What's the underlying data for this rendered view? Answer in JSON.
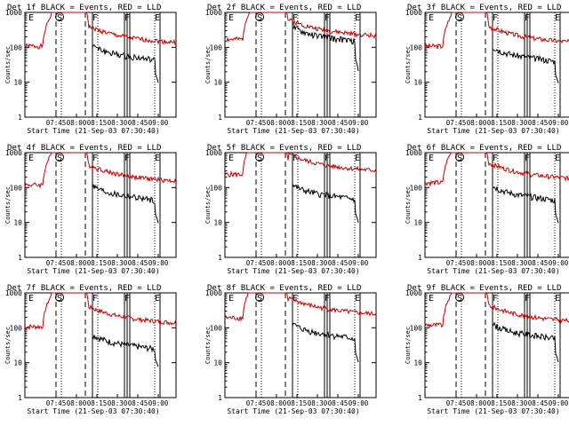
{
  "chart_data": [
    {
      "type": "line",
      "title": "Det 1f BLACK = Events, RED = LLD",
      "xlabel": "Start Time (21-Sep-03 07:30:40)",
      "ylabel": "Counts/sec",
      "yscale": "log",
      "ylim": [
        1,
        1000
      ],
      "xlim": [
        0,
        2.15
      ],
      "x_ticks": [
        "07:45",
        "08:00",
        "08:15",
        "08:30",
        "08:45",
        "09:00"
      ],
      "y_ticks": [
        "1",
        "10",
        "100",
        "1000"
      ],
      "markers": [
        "E",
        "S",
        "F",
        "F",
        "E"
      ],
      "red_base": 180,
      "black_base": 70,
      "black_start": 1.05,
      "seed": 1
    },
    {
      "type": "line",
      "title": "Det 2f BLACK = Events, RED = LLD",
      "xlabel": "Start Time (21-Sep-03 07:30:40)",
      "ylabel": "Counts/sec",
      "yscale": "log",
      "ylim": [
        1,
        1000
      ],
      "xlim": [
        0,
        2.15
      ],
      "x_ticks": [
        "07:45",
        "08:00",
        "08:15",
        "08:30",
        "08:45",
        "09:00"
      ],
      "y_ticks": [
        "1",
        "10",
        "100",
        "1000"
      ],
      "markers": [
        "E",
        "S",
        "F",
        "F",
        "E"
      ],
      "red_base": 280,
      "black_base": 240,
      "black_start": 1.05,
      "seed": 2
    },
    {
      "type": "line",
      "title": "Det 3f BLACK = Events, RED = LLD",
      "xlabel": "Start Time (21-Sep-03 07:30:40)",
      "ylabel": "Counts/sec",
      "yscale": "log",
      "ylim": [
        1,
        1000
      ],
      "xlim": [
        0,
        2.15
      ],
      "x_ticks": [
        "07:45",
        "08:00",
        "08:15",
        "08:30",
        "08:45",
        "09:00"
      ],
      "y_ticks": [
        "1",
        "10",
        "100",
        "1000"
      ],
      "markers": [
        "E",
        "S",
        "F",
        "F",
        "E"
      ],
      "red_base": 180,
      "black_base": 65,
      "black_start": 1.05,
      "seed": 3
    },
    {
      "type": "line",
      "title": "Det 4f BLACK = Events, RED = LLD",
      "xlabel": "Start Time (21-Sep-03 07:30:40)",
      "ylabel": "Counts/sec",
      "yscale": "log",
      "ylim": [
        1,
        1000
      ],
      "xlim": [
        0,
        2.15
      ],
      "x_ticks": [
        "07:45",
        "08:00",
        "08:15",
        "08:30",
        "08:45",
        "09:00"
      ],
      "y_ticks": [
        "1",
        "10",
        "100",
        "1000"
      ],
      "markers": [
        "E",
        "S",
        "F",
        "F",
        "E"
      ],
      "red_base": 200,
      "black_base": 70,
      "black_start": 1.05,
      "seed": 4
    },
    {
      "type": "line",
      "title": "Det 5f BLACK = Events, RED = LLD",
      "xlabel": "Start Time (21-Sep-03 07:30:40)",
      "ylabel": "Counts/sec",
      "yscale": "log",
      "ylim": [
        1,
        1000
      ],
      "xlim": [
        0,
        2.15
      ],
      "x_ticks": [
        "07:45",
        "08:00",
        "08:15",
        "08:30",
        "08:45",
        "09:00"
      ],
      "y_ticks": [
        "1",
        "10",
        "100",
        "1000"
      ],
      "markers": [
        "E",
        "S",
        "F",
        "F",
        "E"
      ],
      "red_base": 400,
      "black_base": 75,
      "black_start": 1.05,
      "seed": 5
    },
    {
      "type": "line",
      "title": "Det 6f BLACK = Events, RED = LLD",
      "xlabel": "Start Time (21-Sep-03 07:30:40)",
      "ylabel": "Counts/sec",
      "yscale": "log",
      "ylim": [
        1,
        1000
      ],
      "xlim": [
        0,
        2.15
      ],
      "x_ticks": [
        "07:45",
        "08:00",
        "08:15",
        "08:30",
        "08:45",
        "09:00"
      ],
      "y_ticks": [
        "1",
        "10",
        "100",
        "1000"
      ],
      "markers": [
        "E",
        "S",
        "F",
        "F",
        "E"
      ],
      "red_base": 230,
      "black_base": 70,
      "black_start": 1.05,
      "seed": 6
    },
    {
      "type": "line",
      "title": "Det 7f BLACK = Events, RED = LLD",
      "xlabel": "Start Time (21-Sep-03 07:30:40)",
      "ylabel": "Counts/sec",
      "yscale": "log",
      "ylim": [
        1,
        1000
      ],
      "xlim": [
        0,
        2.15
      ],
      "x_ticks": [
        "07:45",
        "08:00",
        "08:15",
        "08:30",
        "08:45",
        "09:00"
      ],
      "y_ticks": [
        "1",
        "10",
        "100",
        "1000"
      ],
      "markers": [
        "E",
        "S",
        "F",
        "F",
        "E"
      ],
      "red_base": 180,
      "black_base": 40,
      "black_start": 1.05,
      "seed": 7
    },
    {
      "type": "line",
      "title": "Det 8f BLACK = Events, RED = LLD",
      "xlabel": "Start Time (21-Sep-03 07:30:40)",
      "ylabel": "Counts/sec",
      "yscale": "log",
      "ylim": [
        1,
        1000
      ],
      "xlim": [
        0,
        2.15
      ],
      "x_ticks": [
        "07:45",
        "08:00",
        "08:15",
        "08:30",
        "08:45",
        "09:00"
      ],
      "y_ticks": [
        "1",
        "10",
        "100",
        "1000"
      ],
      "markers": [
        "E",
        "S",
        "F",
        "F",
        "E"
      ],
      "red_base": 320,
      "black_base": 80,
      "black_start": 1.05,
      "seed": 8
    },
    {
      "type": "line",
      "title": "Det 9f BLACK = Events, RED = LLD",
      "xlabel": "Start Time (21-Sep-03 07:30:40)",
      "ylabel": "Counts/sec",
      "yscale": "log",
      "ylim": [
        1,
        1000
      ],
      "xlim": [
        0,
        2.15
      ],
      "x_ticks": [
        "07:45",
        "08:00",
        "08:15",
        "08:30",
        "08:45",
        "09:00"
      ],
      "y_ticks": [
        "1",
        "10",
        "100",
        "1000"
      ],
      "markers": [
        "E",
        "S",
        "F",
        "F",
        "E"
      ],
      "red_base": 200,
      "black_base": 80,
      "black_start": 1.05,
      "seed": 9
    }
  ],
  "colors": {
    "events": "#000000",
    "lld": "#cc0000",
    "background": "#ffffff",
    "axis": "#000000"
  }
}
